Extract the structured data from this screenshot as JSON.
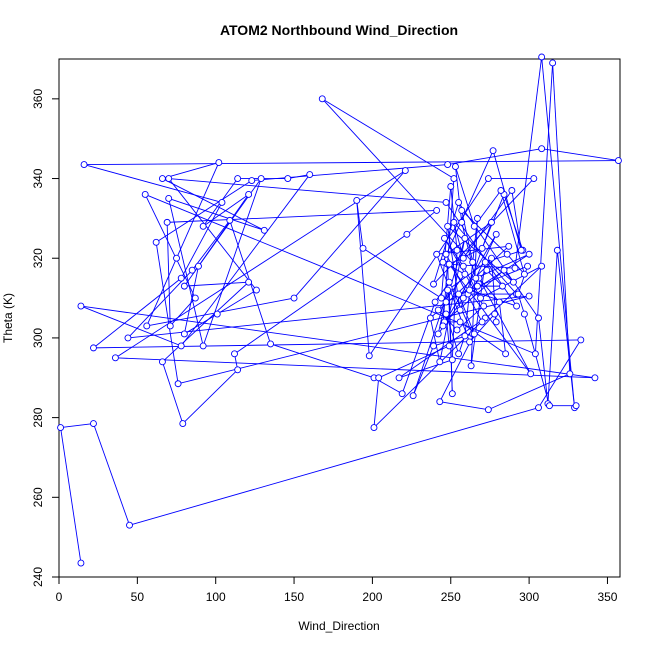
{
  "chart_data": {
    "type": "line",
    "title": "ATOM2 Northbound Wind_Direction",
    "xlabel": "Wind_Direction",
    "ylabel": "Theta (K)",
    "xlim": [
      0,
      358
    ],
    "ylim": [
      240,
      370
    ],
    "xticks": [
      0,
      50,
      100,
      150,
      200,
      250,
      300,
      350
    ],
    "yticks": [
      240,
      260,
      280,
      300,
      320,
      340,
      360
    ],
    "grid": false,
    "marker": "open-circle",
    "series_color": "#0000ff",
    "series": [
      {
        "points": [
          [
            14,
            243.5
          ],
          [
            1,
            277.5
          ],
          [
            22,
            278.5
          ],
          [
            45,
            253
          ],
          [
            306,
            282.5
          ],
          [
            333,
            299.5
          ],
          [
            22,
            297.5
          ],
          [
            78,
            315
          ],
          [
            104,
            334
          ],
          [
            16,
            343.5
          ],
          [
            357,
            344.5
          ],
          [
            308,
            347.5
          ],
          [
            248,
            343.5
          ],
          [
            123,
            339.5
          ],
          [
            62,
            324
          ],
          [
            76,
            288.5
          ],
          [
            300,
            310.5
          ],
          [
            44,
            300
          ],
          [
            85,
            317
          ],
          [
            109,
            329.5
          ],
          [
            135,
            298.5
          ],
          [
            201,
            290
          ],
          [
            219,
            286
          ],
          [
            240,
            309
          ],
          [
            249,
            314
          ],
          [
            264,
            301
          ],
          [
            239,
            298
          ],
          [
            226,
            285.5
          ],
          [
            249,
            312.5
          ],
          [
            251,
            286
          ],
          [
            248,
            318.5
          ],
          [
            291,
            317.5
          ],
          [
            308,
            370.5
          ],
          [
            329,
            282.5
          ],
          [
            318,
            322
          ],
          [
            312,
            283.5
          ],
          [
            306,
            305
          ],
          [
            255,
            334
          ],
          [
            239,
            313.5
          ],
          [
            303,
            340
          ],
          [
            274,
            340
          ],
          [
            198,
            295.5
          ],
          [
            190,
            334.5
          ],
          [
            194,
            322.5
          ],
          [
            244,
            310
          ],
          [
            250,
            338
          ],
          [
            254,
            322
          ],
          [
            251,
            294.5
          ],
          [
            217,
            290
          ],
          [
            272,
            305
          ],
          [
            201,
            277.5
          ],
          [
            204,
            290
          ],
          [
            249,
            298
          ],
          [
            247,
            306
          ],
          [
            255,
            296
          ],
          [
            259,
            300.5
          ],
          [
            267,
            330
          ],
          [
            263,
            293
          ],
          [
            272,
            319
          ],
          [
            296,
            322
          ],
          [
            284,
            336
          ],
          [
            270,
            322.5
          ],
          [
            249,
            318.5
          ],
          [
            301,
            291
          ],
          [
            268,
            315
          ],
          [
            281,
            309
          ],
          [
            285,
            296
          ],
          [
            256,
            304
          ],
          [
            246,
            304
          ],
          [
            284,
            317
          ],
          [
            290,
            314
          ],
          [
            248,
            328
          ],
          [
            256,
            307
          ],
          [
            276,
            329
          ],
          [
            247,
            321
          ],
          [
            270,
            304
          ],
          [
            308,
            318
          ],
          [
            269,
            310
          ],
          [
            258,
            318
          ],
          [
            246,
            325
          ],
          [
            271,
            308
          ],
          [
            254,
            302
          ],
          [
            242,
            307
          ],
          [
            259,
            316
          ],
          [
            245,
            319
          ],
          [
            277,
            347
          ],
          [
            295,
            322
          ],
          [
            289,
            337
          ],
          [
            258,
            320
          ],
          [
            252,
            329
          ],
          [
            292,
            311
          ],
          [
            261,
            311
          ],
          [
            300,
            321
          ],
          [
            266,
            315
          ],
          [
            279,
            326
          ],
          [
            245,
            303
          ],
          [
            252,
            340
          ],
          [
            168,
            360
          ],
          [
            264,
            319
          ],
          [
            257,
            332
          ],
          [
            286,
            321
          ],
          [
            297,
            316
          ],
          [
            282,
            337
          ],
          [
            265,
            328
          ],
          [
            253,
            343
          ],
          [
            257,
            329
          ],
          [
            267,
            313
          ],
          [
            283,
            313
          ],
          [
            273,
            317
          ],
          [
            258,
            310
          ],
          [
            242,
            301
          ],
          [
            248,
            312
          ],
          [
            276,
            320
          ],
          [
            279,
            304
          ],
          [
            278,
            306
          ],
          [
            262,
            299
          ],
          [
            241,
            321
          ],
          [
            287,
            323
          ],
          [
            237,
            305
          ],
          [
            243,
            294
          ],
          [
            259,
            325
          ],
          [
            247,
            309
          ],
          [
            262,
            312
          ],
          [
            292,
            308
          ],
          [
            247,
            334
          ],
          [
            70,
            340
          ],
          [
            126,
            312
          ],
          [
            101,
            306
          ],
          [
            80,
            301
          ],
          [
            89,
            318
          ],
          [
            121,
            336
          ],
          [
            92,
            328
          ],
          [
            114,
            340
          ],
          [
            146,
            340
          ],
          [
            160,
            341
          ],
          [
            78,
            298
          ],
          [
            14,
            308
          ],
          [
            342,
            290
          ],
          [
            36,
            295
          ],
          [
            221,
            342
          ],
          [
            150,
            310
          ],
          [
            56,
            303
          ],
          [
            75,
            320
          ],
          [
            102,
            344
          ],
          [
            66,
            340
          ],
          [
            131,
            327
          ],
          [
            70,
            335
          ],
          [
            92,
            298
          ],
          [
            129,
            340
          ],
          [
            80,
            313
          ],
          [
            121,
            314
          ],
          [
            66,
            294
          ],
          [
            79,
            278.5
          ],
          [
            114,
            292
          ],
          [
            112,
            296
          ],
          [
            222,
            326
          ],
          [
            241,
            332
          ],
          [
            69,
            329
          ],
          [
            71,
            303
          ],
          [
            87,
            310
          ],
          [
            55,
            336
          ],
          [
            304,
            296
          ],
          [
            315,
            369
          ],
          [
            326,
            291
          ],
          [
            274,
            282
          ],
          [
            243,
            284
          ],
          [
            265,
            301
          ],
          [
            255,
            311
          ],
          [
            299,
            318
          ],
          [
            293,
            311
          ],
          [
            297,
            306
          ],
          [
            313,
            283
          ],
          [
            330,
            283
          ]
        ]
      }
    ]
  }
}
